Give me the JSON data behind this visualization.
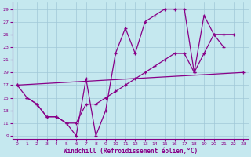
{
  "background_color": "#c5e8ef",
  "grid_color": "#a0c8d8",
  "line_color": "#880088",
  "xlabel": "Windchill (Refroidissement éolien,°C)",
  "xlim": [
    -0.5,
    23.5
  ],
  "ylim": [
    8.5,
    30.0
  ],
  "xticks": [
    0,
    1,
    2,
    3,
    4,
    5,
    6,
    7,
    8,
    9,
    10,
    11,
    12,
    13,
    14,
    15,
    16,
    17,
    18,
    19,
    20,
    21,
    22,
    23
  ],
  "yticks": [
    9,
    11,
    13,
    15,
    17,
    19,
    21,
    23,
    25,
    27,
    29
  ],
  "series": [
    {
      "x": [
        0,
        1,
        2,
        3,
        4,
        5,
        6,
        7,
        8,
        9,
        10,
        11,
        12,
        13,
        14,
        15,
        16,
        17,
        18,
        19,
        20,
        21
      ],
      "y": [
        17,
        15,
        14,
        12,
        12,
        11,
        9,
        18,
        9,
        13,
        22,
        26,
        22,
        27,
        28,
        29,
        29,
        29,
        19,
        28,
        25,
        23
      ]
    },
    {
      "x": [
        0,
        23
      ],
      "y": [
        17,
        19
      ]
    },
    {
      "x": [
        1,
        2,
        3,
        4,
        5,
        6,
        7,
        8,
        9,
        10,
        11,
        12,
        13,
        14,
        15,
        16,
        17,
        18,
        19,
        20,
        21,
        22
      ],
      "y": [
        15,
        14,
        12,
        12,
        11,
        11,
        14,
        14,
        15,
        16,
        17,
        18,
        19,
        20,
        21,
        22,
        22,
        19,
        22,
        25,
        25,
        25
      ]
    }
  ]
}
